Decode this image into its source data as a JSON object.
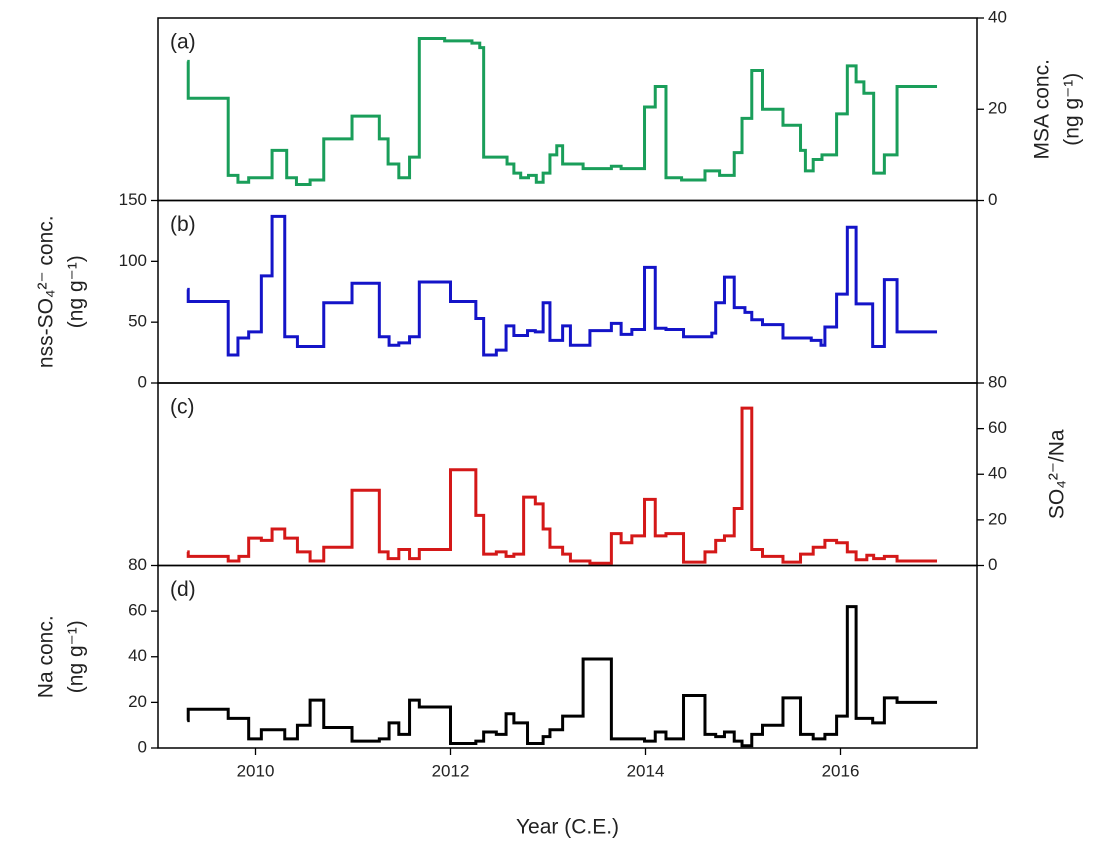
{
  "chart_data": [
    {
      "type": "line",
      "step": true,
      "label": "(a)",
      "ylabel": [
        "MSA conc.",
        "(ng g⁻¹)"
      ],
      "y_axis": "right",
      "color": "#1a9e5a",
      "xlim": [
        2009.0,
        2017.4
      ],
      "ylim": [
        0,
        40
      ],
      "yticks": [
        0,
        20,
        40
      ],
      "x": [
        2009.3,
        2009.31,
        2009.72,
        2009.82,
        2009.93,
        2010.17,
        2010.32,
        2010.42,
        2010.56,
        2010.7,
        2010.99,
        2011.27,
        2011.36,
        2011.47,
        2011.58,
        2011.68,
        2011.94,
        2012.22,
        2012.3,
        2012.34,
        2012.58,
        2012.65,
        2012.72,
        2012.8,
        2012.88,
        2012.95,
        2013.02,
        2013.09,
        2013.15,
        2013.36,
        2013.57,
        2013.65,
        2013.75,
        2013.89,
        2013.99,
        2014.1,
        2014.21,
        2014.37,
        2014.61,
        2014.76,
        2014.91,
        2014.99,
        2015.09,
        2015.2,
        2015.41,
        2015.59,
        2015.64,
        2015.72,
        2015.81,
        2015.96,
        2016.07,
        2016.16,
        2016.24,
        2016.34,
        2016.45,
        2016.58,
        2016.99
      ],
      "values": [
        30.5,
        22.4,
        5.5,
        4,
        5,
        11,
        5,
        3.5,
        4.5,
        13.5,
        18.5,
        13.5,
        8,
        5,
        9.5,
        35.5,
        35,
        34.5,
        33.5,
        9.5,
        8,
        6,
        5,
        5.5,
        4,
        6,
        10,
        12,
        8,
        7,
        7,
        7.5,
        7,
        7,
        20.5,
        25,
        5,
        4.5,
        6.5,
        5.5,
        10.5,
        18,
        28.5,
        20,
        16.5,
        11,
        6.5,
        9,
        10,
        19,
        29.5,
        26,
        23.5,
        6,
        10,
        25,
        25
      ]
    },
    {
      "type": "line",
      "step": true,
      "label": "(b)",
      "ylabel": [
        "nss-SO₄²⁻ conc.",
        "(ng g⁻¹)"
      ],
      "y_axis": "left",
      "color": "#1414c8",
      "xlim": [
        2009.0,
        2017.4
      ],
      "ylim": [
        0,
        150
      ],
      "yticks": [
        0,
        50,
        100,
        150
      ],
      "x": [
        2009.3,
        2009.31,
        2009.72,
        2009.82,
        2009.93,
        2010.06,
        2010.17,
        2010.3,
        2010.43,
        2010.7,
        2010.99,
        2011.27,
        2011.37,
        2011.47,
        2011.58,
        2011.68,
        2012.0,
        2012.26,
        2012.34,
        2012.47,
        2012.57,
        2012.65,
        2012.79,
        2012.87,
        2012.95,
        2013.02,
        2013.15,
        2013.23,
        2013.43,
        2013.65,
        2013.75,
        2013.86,
        2013.99,
        2014.1,
        2014.21,
        2014.39,
        2014.68,
        2014.72,
        2014.81,
        2014.91,
        2015.02,
        2015.09,
        2015.2,
        2015.41,
        2015.7,
        2015.8,
        2015.84,
        2015.96,
        2016.07,
        2016.16,
        2016.33,
        2016.45,
        2016.58,
        2016.99
      ],
      "values": [
        77,
        67,
        23,
        37,
        42,
        88,
        137,
        38,
        30,
        66,
        82,
        38,
        31,
        33,
        38,
        83,
        67,
        53,
        23,
        27,
        47,
        39,
        43,
        42,
        66,
        35,
        47,
        31,
        43,
        49,
        40,
        44,
        95,
        45,
        44,
        38,
        41,
        66,
        87,
        62,
        58,
        52,
        48,
        37,
        35,
        31,
        46,
        73,
        128,
        65,
        30,
        85,
        42,
        42
      ]
    },
    {
      "type": "line",
      "step": true,
      "label": "(c)",
      "ylabel": [
        "SO₄²⁻/Na"
      ],
      "y_axis": "right",
      "color": "#d41818",
      "xlim": [
        2009.0,
        2017.4
      ],
      "ylim": [
        0,
        80
      ],
      "yticks": [
        0,
        20,
        40,
        60,
        80
      ],
      "x": [
        2009.3,
        2009.31,
        2009.72,
        2009.83,
        2009.93,
        2010.06,
        2010.17,
        2010.3,
        2010.43,
        2010.56,
        2010.7,
        2010.99,
        2011.27,
        2011.36,
        2011.47,
        2011.58,
        2011.68,
        2012.0,
        2012.26,
        2012.34,
        2012.47,
        2012.57,
        2012.65,
        2012.75,
        2012.87,
        2012.95,
        2013.02,
        2013.15,
        2013.23,
        2013.43,
        2013.65,
        2013.75,
        2013.86,
        2013.99,
        2014.1,
        2014.21,
        2014.39,
        2014.61,
        2014.72,
        2014.81,
        2014.91,
        2014.99,
        2015.09,
        2015.2,
        2015.41,
        2015.59,
        2015.72,
        2015.84,
        2015.96,
        2016.07,
        2016.16,
        2016.27,
        2016.34,
        2016.45,
        2016.58,
        2016.99
      ],
      "values": [
        6,
        4,
        2,
        4,
        12,
        11,
        16,
        12,
        6,
        2,
        8,
        33,
        6,
        3,
        7,
        3,
        7,
        42,
        22,
        5,
        6,
        4,
        5,
        30,
        27,
        16,
        8,
        5,
        2,
        1,
        14,
        10,
        13,
        29,
        13,
        14,
        1.5,
        6,
        11,
        13,
        25,
        69,
        7,
        4,
        1.5,
        5,
        8,
        11,
        10,
        6,
        2.5,
        4.5,
        3,
        4,
        2,
        2
      ]
    },
    {
      "type": "line",
      "step": true,
      "label": "(d)",
      "ylabel": [
        "Na conc.",
        "(ng g⁻¹)"
      ],
      "y_axis": "left",
      "color": "#000000",
      "xlim": [
        2009.0,
        2017.4
      ],
      "ylim": [
        0,
        80
      ],
      "yticks": [
        0,
        20,
        40,
        60,
        80
      ],
      "xlabel": "Year (C.E.)",
      "xticks": [
        2010,
        2012,
        2014,
        2016
      ],
      "x": [
        2009.3,
        2009.31,
        2009.72,
        2009.93,
        2010.06,
        2010.3,
        2010.43,
        2010.56,
        2010.7,
        2010.99,
        2011.27,
        2011.37,
        2011.47,
        2011.58,
        2011.68,
        2012.0,
        2012.26,
        2012.34,
        2012.47,
        2012.57,
        2012.65,
        2012.79,
        2012.95,
        2013.02,
        2013.15,
        2013.36,
        2013.65,
        2013.99,
        2014.1,
        2014.21,
        2014.39,
        2014.61,
        2014.72,
        2014.81,
        2014.91,
        2014.99,
        2015.09,
        2015.2,
        2015.41,
        2015.59,
        2015.72,
        2015.84,
        2015.96,
        2016.07,
        2016.16,
        2016.33,
        2016.45,
        2016.58,
        2016.99
      ],
      "values": [
        12,
        17,
        13,
        4,
        8,
        4,
        10,
        21,
        9,
        3,
        4,
        11,
        6,
        21,
        18,
        2,
        3,
        7,
        6,
        15,
        11,
        2,
        5,
        8,
        14,
        39,
        4,
        3,
        7,
        4,
        23,
        6,
        5,
        7,
        3,
        1,
        6,
        10,
        22,
        6,
        4,
        6,
        14,
        62,
        13,
        11,
        22,
        20,
        20
      ]
    }
  ]
}
